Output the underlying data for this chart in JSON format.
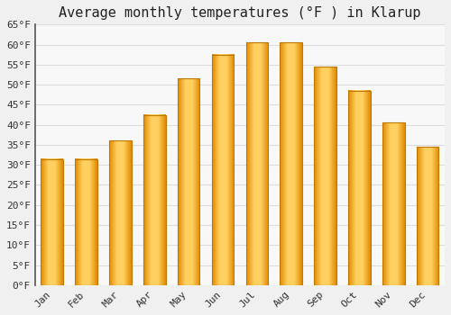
{
  "title": "Average monthly temperatures (°F ) in Klarup",
  "months": [
    "Jan",
    "Feb",
    "Mar",
    "Apr",
    "May",
    "Jun",
    "Jul",
    "Aug",
    "Sep",
    "Oct",
    "Nov",
    "Dec"
  ],
  "values": [
    31.5,
    31.5,
    36.0,
    42.5,
    51.5,
    57.5,
    60.5,
    60.5,
    54.5,
    48.5,
    40.5,
    34.5
  ],
  "bar_color_left": "#F5A623",
  "bar_color_center": "#FFD060",
  "bar_color_right": "#E08000",
  "ylim": [
    0,
    65
  ],
  "yticks": [
    0,
    5,
    10,
    15,
    20,
    25,
    30,
    35,
    40,
    45,
    50,
    55,
    60,
    65
  ],
  "background_color": "#f0f0f0",
  "plot_bg_color": "#f8f8f8",
  "grid_color": "#dddddd",
  "title_fontsize": 11,
  "tick_fontsize": 8,
  "font_family": "monospace",
  "spine_color": "#555555"
}
